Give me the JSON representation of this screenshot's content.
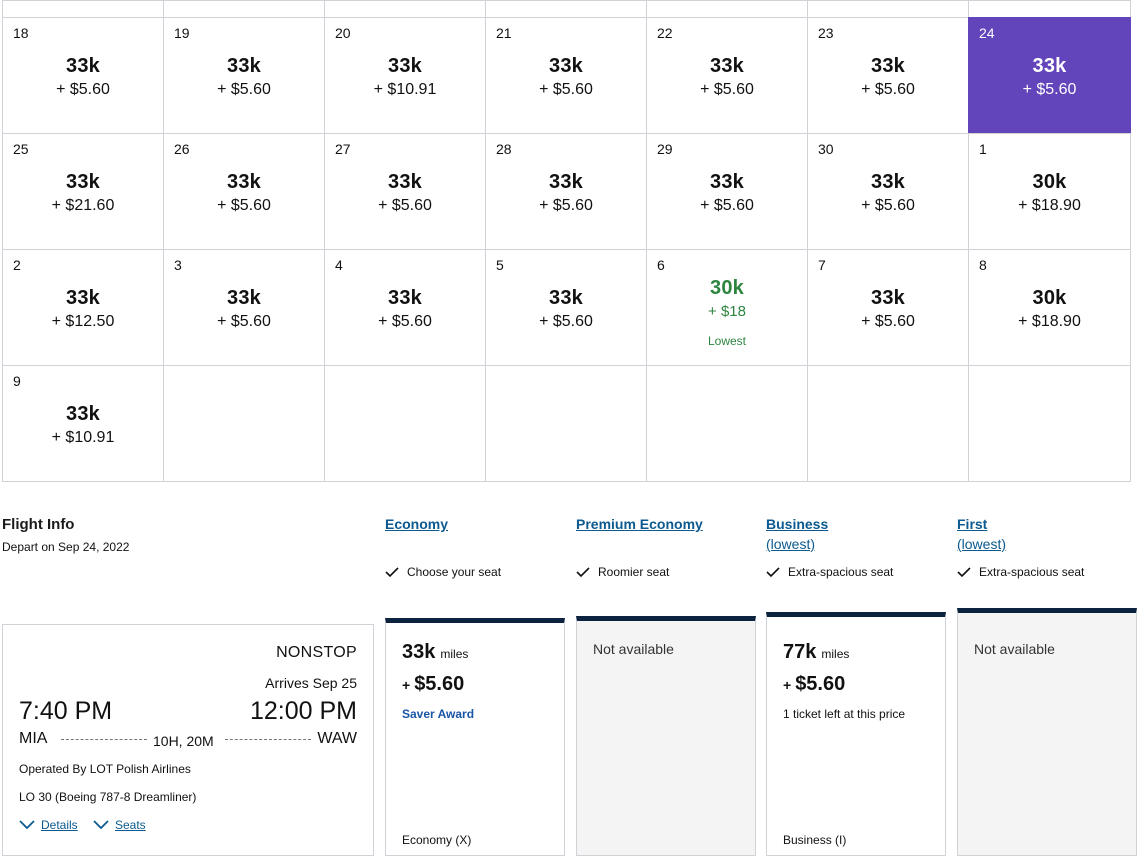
{
  "calendar": {
    "top_row_count": 7,
    "weeks": [
      [
        {
          "day": "18",
          "miles": "33k",
          "tax": "+ $5.60"
        },
        {
          "day": "19",
          "miles": "33k",
          "tax": "+ $5.60"
        },
        {
          "day": "20",
          "miles": "33k",
          "tax": "+ $10.91"
        },
        {
          "day": "21",
          "miles": "33k",
          "tax": "+ $5.60"
        },
        {
          "day": "22",
          "miles": "33k",
          "tax": "+ $5.60"
        },
        {
          "day": "23",
          "miles": "33k",
          "tax": "+ $5.60"
        },
        {
          "day": "24",
          "miles": "33k",
          "tax": "+ $5.60",
          "selected": true
        }
      ],
      [
        {
          "day": "25",
          "miles": "33k",
          "tax": "+ $21.60"
        },
        {
          "day": "26",
          "miles": "33k",
          "tax": "+ $5.60"
        },
        {
          "day": "27",
          "miles": "33k",
          "tax": "+ $5.60"
        },
        {
          "day": "28",
          "miles": "33k",
          "tax": "+ $5.60"
        },
        {
          "day": "29",
          "miles": "33k",
          "tax": "+ $5.60"
        },
        {
          "day": "30",
          "miles": "33k",
          "tax": "+ $5.60"
        },
        {
          "day": "1",
          "miles": "30k",
          "tax": "+ $18.90"
        }
      ],
      [
        {
          "day": "2",
          "miles": "33k",
          "tax": "+ $12.50"
        },
        {
          "day": "3",
          "miles": "33k",
          "tax": "+ $5.60"
        },
        {
          "day": "4",
          "miles": "33k",
          "tax": "+ $5.60"
        },
        {
          "day": "5",
          "miles": "33k",
          "tax": "+ $5.60"
        },
        {
          "day": "6",
          "miles": "30k",
          "tax": "+ $18",
          "lowest": "Lowest"
        },
        {
          "day": "7",
          "miles": "33k",
          "tax": "+ $5.60"
        },
        {
          "day": "8",
          "miles": "30k",
          "tax": "+ $18.90"
        }
      ],
      [
        {
          "day": "9",
          "miles": "33k",
          "tax": "+ $10.91"
        },
        {},
        {},
        {},
        {},
        {},
        {}
      ]
    ]
  },
  "flight_info": {
    "title": "Flight Info",
    "depart": "Depart on Sep 24, 2022"
  },
  "cabins": [
    {
      "name": "Economy",
      "sub": "",
      "feature": "Choose your seat"
    },
    {
      "name": "Premium Economy",
      "sub": "",
      "feature": "Roomier seat"
    },
    {
      "name": "Business",
      "sub": "(lowest)",
      "feature": "Extra-spacious seat"
    },
    {
      "name": "First",
      "sub": "(lowest)",
      "feature": "Extra-spacious seat"
    }
  ],
  "flight": {
    "stops": "NONSTOP",
    "arrives": "Arrives Sep 25",
    "depart_time": "7:40 PM",
    "arrive_time": "12:00 PM",
    "origin": "MIA",
    "destination": "WAW",
    "duration": "10H, 20M",
    "operated_by": "Operated By LOT Polish Airlines",
    "flight_number": "LO 30 (Boeing 787-8 Dreamliner)",
    "details_label": "Details",
    "seats_label": "Seats"
  },
  "fares": {
    "economy": {
      "miles": "33k",
      "miles_unit": "miles",
      "tax": "$5.60",
      "plus": "+",
      "note": "Saver Award",
      "code": "Economy (X)"
    },
    "premium": {
      "not_available": "Not available"
    },
    "business": {
      "miles": "77k",
      "miles_unit": "miles",
      "tax": "$5.60",
      "plus": "+",
      "note": "1 ticket left at this price",
      "code": "Business (I)"
    },
    "first": {
      "not_available": "Not available"
    }
  },
  "colors": {
    "selected": "#6244bb",
    "lowest": "#2e8540",
    "link": "#0c5a8f",
    "cabin_bar": "#0c2340"
  }
}
